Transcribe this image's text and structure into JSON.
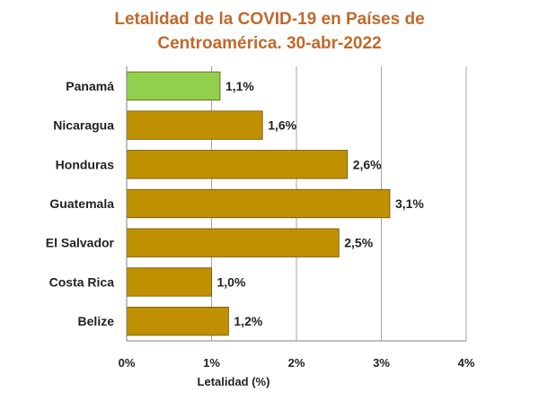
{
  "chart_data": {
    "type": "bar",
    "orientation": "horizontal",
    "title_line1": "Letalidad de la COVID-19 en Países de",
    "title_line2": "Centroamérica. 30-abr-2022",
    "categories": [
      "Panamá",
      "Nicaragua",
      "Honduras",
      "Guatemala",
      "El Salvador",
      "Costa Rica",
      "Belize"
    ],
    "values": [
      1.1,
      1.6,
      2.6,
      3.1,
      2.5,
      1.0,
      1.2
    ],
    "value_labels": [
      "1,1%",
      "1,6%",
      "2,6%",
      "3,1%",
      "2,5%",
      "1,0%",
      "1,2%"
    ],
    "xlabel": "Letalidad (%)",
    "ylabel": "",
    "xlim": [
      0,
      4
    ],
    "xticks": [
      0,
      1,
      2,
      3,
      4
    ],
    "xtick_labels": [
      "0%",
      "1%",
      "2%",
      "3%",
      "4%"
    ],
    "grid": true,
    "colors": {
      "highlight": "#92D050",
      "highlight_category": "Panamá",
      "default": "#BF9000",
      "bar_edge": "#6B5200",
      "grid": "#A6A6A6",
      "title": "#C0692C"
    }
  }
}
